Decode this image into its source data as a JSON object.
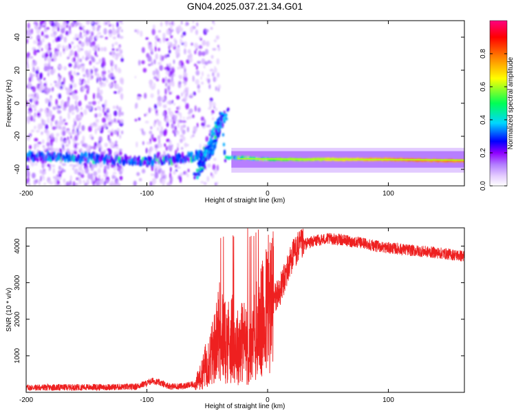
{
  "figure": {
    "title": "GN04.2025.037.21.34.G01"
  },
  "chart_data": [
    {
      "type": "heatmap",
      "xlabel": "Height of straight line (km)",
      "ylabel": "Frequency (Hz)",
      "xlim": [
        -200,
        163
      ],
      "ylim": [
        -50,
        50
      ],
      "xticks": [
        -200,
        -100,
        0,
        100
      ],
      "yticks": [
        -40,
        -20,
        0,
        20,
        40
      ],
      "grid": false,
      "colorbar": {
        "label": "Normalized spectral amplitude",
        "range": [
          0,
          1
        ],
        "ticks": [
          "0.0",
          "0.2",
          "0.4",
          "0.6",
          "0.8"
        ],
        "colormap": "rainbow (white-violet-blue-cyan-green-yellow-red)",
        "colors": [
          "#ffffff",
          "#e4ccff",
          "#b27cff",
          "#8f00ff",
          "#0000ff",
          "#00d7ff",
          "#00ff55",
          "#ffff00",
          "#ff8000",
          "#ff0000",
          "#ff0080"
        ]
      },
      "ridge": {
        "description": "dominant frequency band",
        "points": [
          [
            -200,
            -32
          ],
          [
            -150,
            -33
          ],
          [
            -110,
            -35
          ],
          [
            -80,
            -34
          ],
          [
            -60,
            -32
          ],
          [
            -45,
            -30
          ],
          [
            -38,
            -10
          ],
          [
            -35,
            -33
          ],
          [
            -20,
            -33
          ],
          [
            0,
            -34
          ],
          [
            50,
            -34
          ],
          [
            100,
            -34
          ],
          [
            163,
            -35
          ]
        ]
      }
    },
    {
      "type": "line",
      "xlabel": "Height of straight line (km)",
      "ylabel": "SNR (10 * v/v)",
      "xlim": [
        -200,
        163
      ],
      "ylim": [
        0,
        4500
      ],
      "xticks": [
        -200,
        -100,
        0,
        100
      ],
      "yticks": [
        1000,
        2000,
        3000,
        4000
      ],
      "grid": false,
      "series": [
        {
          "color": "#ee2020",
          "x": [
            -200,
            -150,
            -110,
            -100,
            -95,
            -80,
            -70,
            -60,
            -55,
            -50,
            -45,
            -40,
            -35,
            -30,
            -25,
            -20,
            -15,
            -10,
            -5,
            0,
            5,
            10,
            15,
            20,
            25,
            30,
            40,
            50,
            60,
            70,
            80,
            90,
            100,
            110,
            120,
            130,
            140,
            150,
            163
          ],
          "values": [
            130,
            140,
            150,
            250,
            320,
            160,
            170,
            220,
            450,
            850,
            1100,
            1700,
            1350,
            1500,
            1250,
            1450,
            1050,
            1600,
            1900,
            2300,
            2550,
            2750,
            3200,
            3700,
            3950,
            4050,
            4150,
            4200,
            4180,
            4120,
            4080,
            4000,
            3950,
            3920,
            3880,
            3850,
            3820,
            3780,
            3720
          ]
        }
      ]
    }
  ]
}
